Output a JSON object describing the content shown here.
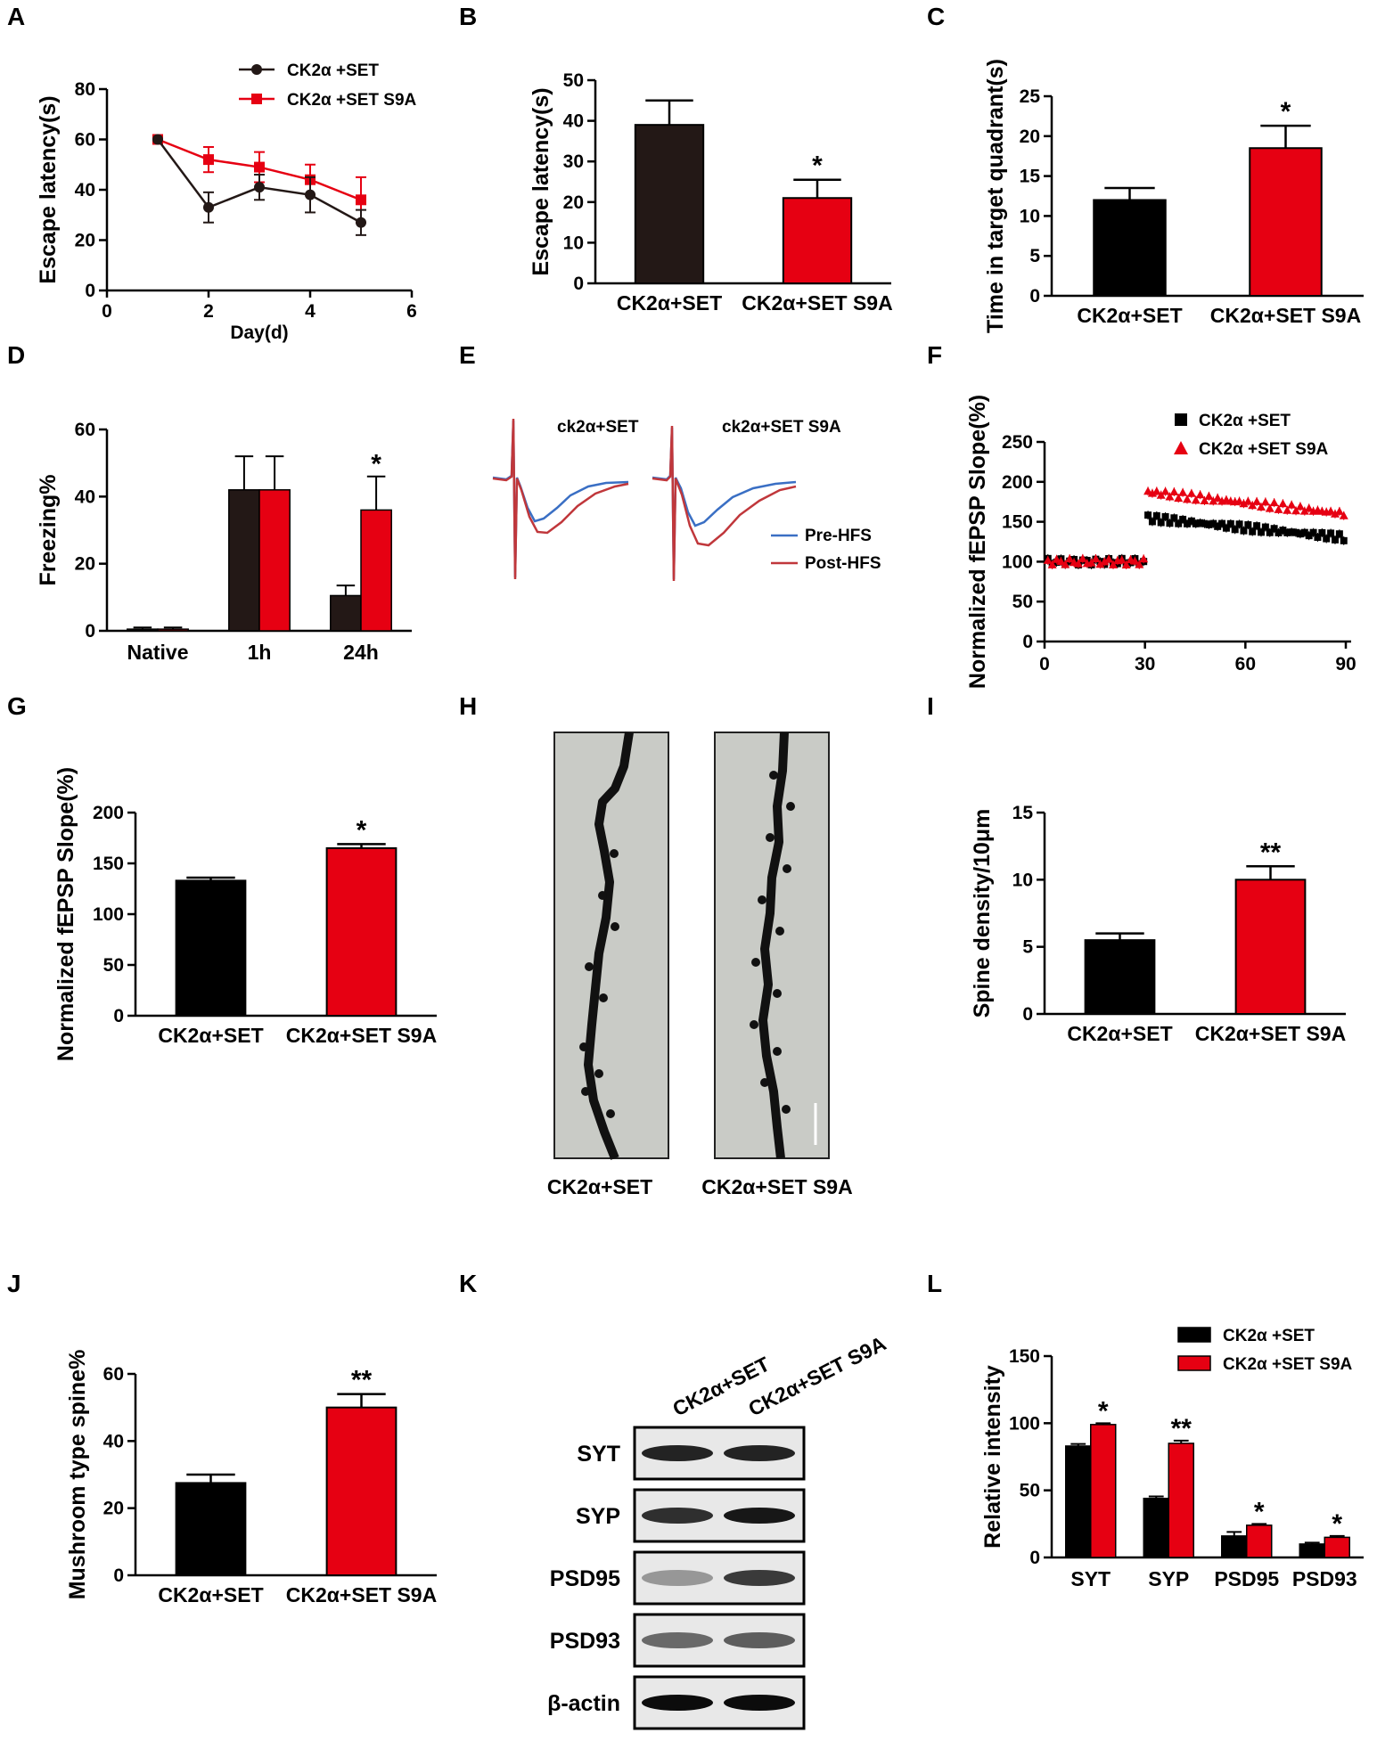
{
  "colors": {
    "control": "#231816",
    "control_black": "#000000",
    "mutant": "#e60012",
    "pre_hfs": "#3a6fc4",
    "post_hfs": "#c0373b",
    "blot_bg": "#e8e8e8",
    "micro_bg": "#c9cbc6"
  },
  "panels": {
    "A": {
      "letter": "A"
    },
    "B": {
      "letter": "B"
    },
    "C": {
      "letter": "C"
    },
    "D": {
      "letter": "D"
    },
    "E": {
      "letter": "E"
    },
    "F": {
      "letter": "F"
    },
    "G": {
      "letter": "G"
    },
    "H": {
      "letter": "H"
    },
    "I": {
      "letter": "I"
    },
    "J": {
      "letter": "J"
    },
    "K": {
      "letter": "K"
    },
    "L": {
      "letter": "L"
    }
  },
  "trace_labels": {
    "left": "ck2α+SET",
    "right": "ck2α+SET S9A",
    "pre": "Pre-HFS",
    "post": "Post-HFS"
  },
  "micro_labels": [
    "CK2α+SET",
    "CK2α+SET S9A"
  ],
  "blot": {
    "lanes": [
      "CK2α+SET",
      "CK2α+SET S9A"
    ],
    "rows": [
      "SYT",
      "SYP",
      "PSD95",
      "PSD93",
      "β-actin"
    ],
    "band_intensity": [
      [
        0.85,
        0.85
      ],
      [
        0.8,
        0.9
      ],
      [
        0.35,
        0.75
      ],
      [
        0.55,
        0.6
      ],
      [
        0.95,
        0.95
      ]
    ]
  },
  "chart_data": [
    {
      "panel": "A",
      "type": "line",
      "xlabel": "Day(d)",
      "ylabel": "Escape latency(s)",
      "xlim": [
        0,
        6
      ],
      "ylim": [
        0,
        80
      ],
      "xticks": [
        0,
        2,
        4,
        6
      ],
      "yticks": [
        0,
        20,
        40,
        60,
        80
      ],
      "x": [
        1,
        2,
        3,
        4,
        5
      ],
      "series": [
        {
          "name": "CK2α +SET",
          "values": [
            60,
            33,
            41,
            38,
            27
          ],
          "err": [
            0,
            6,
            5,
            7,
            5
          ]
        },
        {
          "name": "CK2α +SET S9A",
          "values": [
            60,
            52,
            49,
            44,
            36
          ],
          "err": [
            0,
            5,
            6,
            6,
            9
          ]
        }
      ]
    },
    {
      "panel": "B",
      "type": "bar",
      "ylabel": "Escape latency(s)",
      "ylim": [
        0,
        50
      ],
      "yticks": [
        0,
        10,
        20,
        30,
        40,
        50
      ],
      "categories": [
        "CK2α+SET",
        "CK2α+SET S9A"
      ],
      "values": [
        39,
        21
      ],
      "errors": [
        6,
        4.5
      ],
      "significance": [
        "",
        "*"
      ]
    },
    {
      "panel": "C",
      "type": "bar",
      "ylabel": "Time in target quadrant(s)",
      "ylim": [
        0,
        25
      ],
      "yticks": [
        0,
        5,
        10,
        15,
        20,
        25
      ],
      "categories": [
        "CK2α+SET",
        "CK2α+SET S9A"
      ],
      "values": [
        12,
        18.5
      ],
      "errors": [
        1.5,
        2.8
      ],
      "significance": [
        "",
        "*"
      ]
    },
    {
      "panel": "D",
      "type": "bar",
      "ylabel": "Freezing%",
      "ylim": [
        0,
        60
      ],
      "yticks": [
        0,
        20,
        40,
        60
      ],
      "categories": [
        "Native",
        "1h",
        "24h"
      ],
      "series": [
        {
          "name": "CK2α +SET",
          "values": [
            0.5,
            42,
            10.5
          ],
          "errors": [
            0.5,
            10,
            3
          ]
        },
        {
          "name": "CK2α +SET S9A",
          "values": [
            0.5,
            42,
            36
          ],
          "errors": [
            0.5,
            10,
            10
          ]
        }
      ],
      "significance": [
        "",
        "",
        "*"
      ]
    },
    {
      "panel": "F",
      "type": "scatter",
      "ylabel": "Normalized fEPSP Slope(%)",
      "xlim": [
        0,
        90
      ],
      "ylim": [
        0,
        250
      ],
      "xticks": [
        0,
        30,
        60,
        90
      ],
      "yticks": [
        0,
        50,
        100,
        150,
        200,
        250
      ],
      "series": [
        {
          "name": "CK2α +SET",
          "baseline": 100,
          "post_start": 155,
          "post_end": 130
        },
        {
          "name": "CK2α +SET S9A",
          "baseline": 100,
          "post_start": 188,
          "post_end": 160
        }
      ]
    },
    {
      "panel": "G",
      "type": "bar",
      "ylabel": "Normalized fEPSP Slope(%)",
      "ylim": [
        0,
        200
      ],
      "yticks": [
        0,
        50,
        100,
        150,
        200
      ],
      "categories": [
        "CK2α+SET",
        "CK2α+SET S9A"
      ],
      "values": [
        133,
        165
      ],
      "errors": [
        3,
        4
      ],
      "significance": [
        "",
        "*"
      ]
    },
    {
      "panel": "I",
      "type": "bar",
      "ylabel": "Spine density/10μm",
      "ylim": [
        0,
        15
      ],
      "yticks": [
        0,
        5,
        10,
        15
      ],
      "categories": [
        "CK2α+SET",
        "CK2α+SET S9A"
      ],
      "values": [
        5.5,
        10
      ],
      "errors": [
        0.5,
        1
      ],
      "significance": [
        "",
        "**"
      ]
    },
    {
      "panel": "J",
      "type": "bar",
      "ylabel": "Mushroom type spine%",
      "ylim": [
        0,
        60
      ],
      "yticks": [
        0,
        20,
        40,
        60
      ],
      "categories": [
        "CK2α+SET",
        "CK2α+SET S9A"
      ],
      "values": [
        27.5,
        50
      ],
      "errors": [
        2.5,
        4
      ],
      "significance": [
        "",
        "**"
      ]
    },
    {
      "panel": "L",
      "type": "bar",
      "ylabel": "Relative intensity",
      "ylim": [
        0,
        150
      ],
      "yticks": [
        0,
        50,
        100,
        150
      ],
      "categories": [
        "SYT",
        "SYP",
        "PSD95",
        "PSD93"
      ],
      "series": [
        {
          "name": "CK2α +SET",
          "values": [
            83,
            44,
            16,
            10
          ],
          "errors": [
            1.5,
            1.5,
            3,
            1
          ]
        },
        {
          "name": "CK2α +SET S9A",
          "values": [
            99,
            85,
            24,
            15
          ],
          "errors": [
            1,
            2,
            1,
            1
          ]
        }
      ],
      "significance": [
        "*",
        "**",
        "*",
        "*"
      ]
    }
  ]
}
